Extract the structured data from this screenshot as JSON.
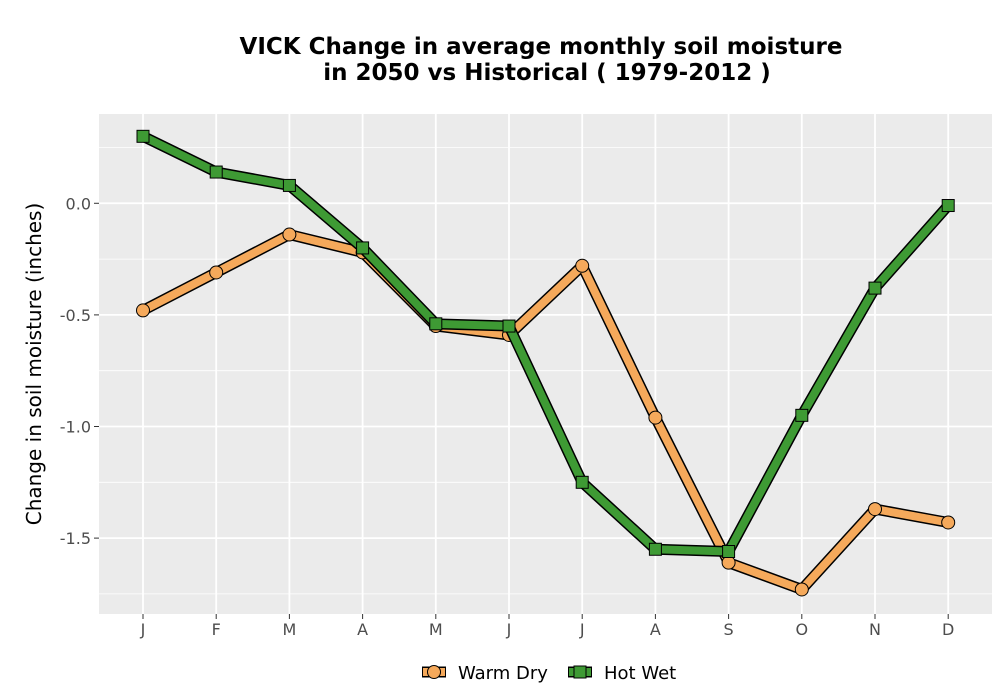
{
  "chart_data": {
    "type": "line",
    "title_lines": [
      "VICK  Change in average monthly soil moisture",
      "in 2050 vs Historical ( 1979-2012 )"
    ],
    "xlabel": "",
    "ylabel": "Change in soil moisture (inches)",
    "categories": [
      "J",
      "F",
      "M",
      "A",
      "M",
      "J",
      "J",
      "A",
      "S",
      "O",
      "N",
      "D"
    ],
    "yticks": [
      0.0,
      -0.5,
      -1.0,
      -1.5
    ],
    "ytick_labels": [
      "0.0",
      "-0.5",
      "-1.0",
      "-1.5"
    ],
    "ylim": [
      -1.84,
      0.4
    ],
    "grid": true,
    "legend_position": "bottom",
    "series": [
      {
        "name": "Warm Dry",
        "marker": "circle",
        "color": "#f5a95b",
        "values": [
          -0.48,
          -0.31,
          -0.14,
          -0.22,
          -0.55,
          -0.59,
          -0.28,
          -0.96,
          -1.61,
          -1.73,
          -1.37,
          -1.43
        ]
      },
      {
        "name": "Hot Wet",
        "marker": "square",
        "color": "#3e9a34",
        "values": [
          0.3,
          0.14,
          0.08,
          -0.2,
          -0.54,
          -0.55,
          -1.25,
          -1.55,
          -1.56,
          -0.95,
          -0.38,
          -0.01
        ]
      }
    ]
  },
  "colors": {
    "panel_background": "#ebebeb",
    "grid": "#ffffff",
    "marker_edge": "#000000"
  }
}
